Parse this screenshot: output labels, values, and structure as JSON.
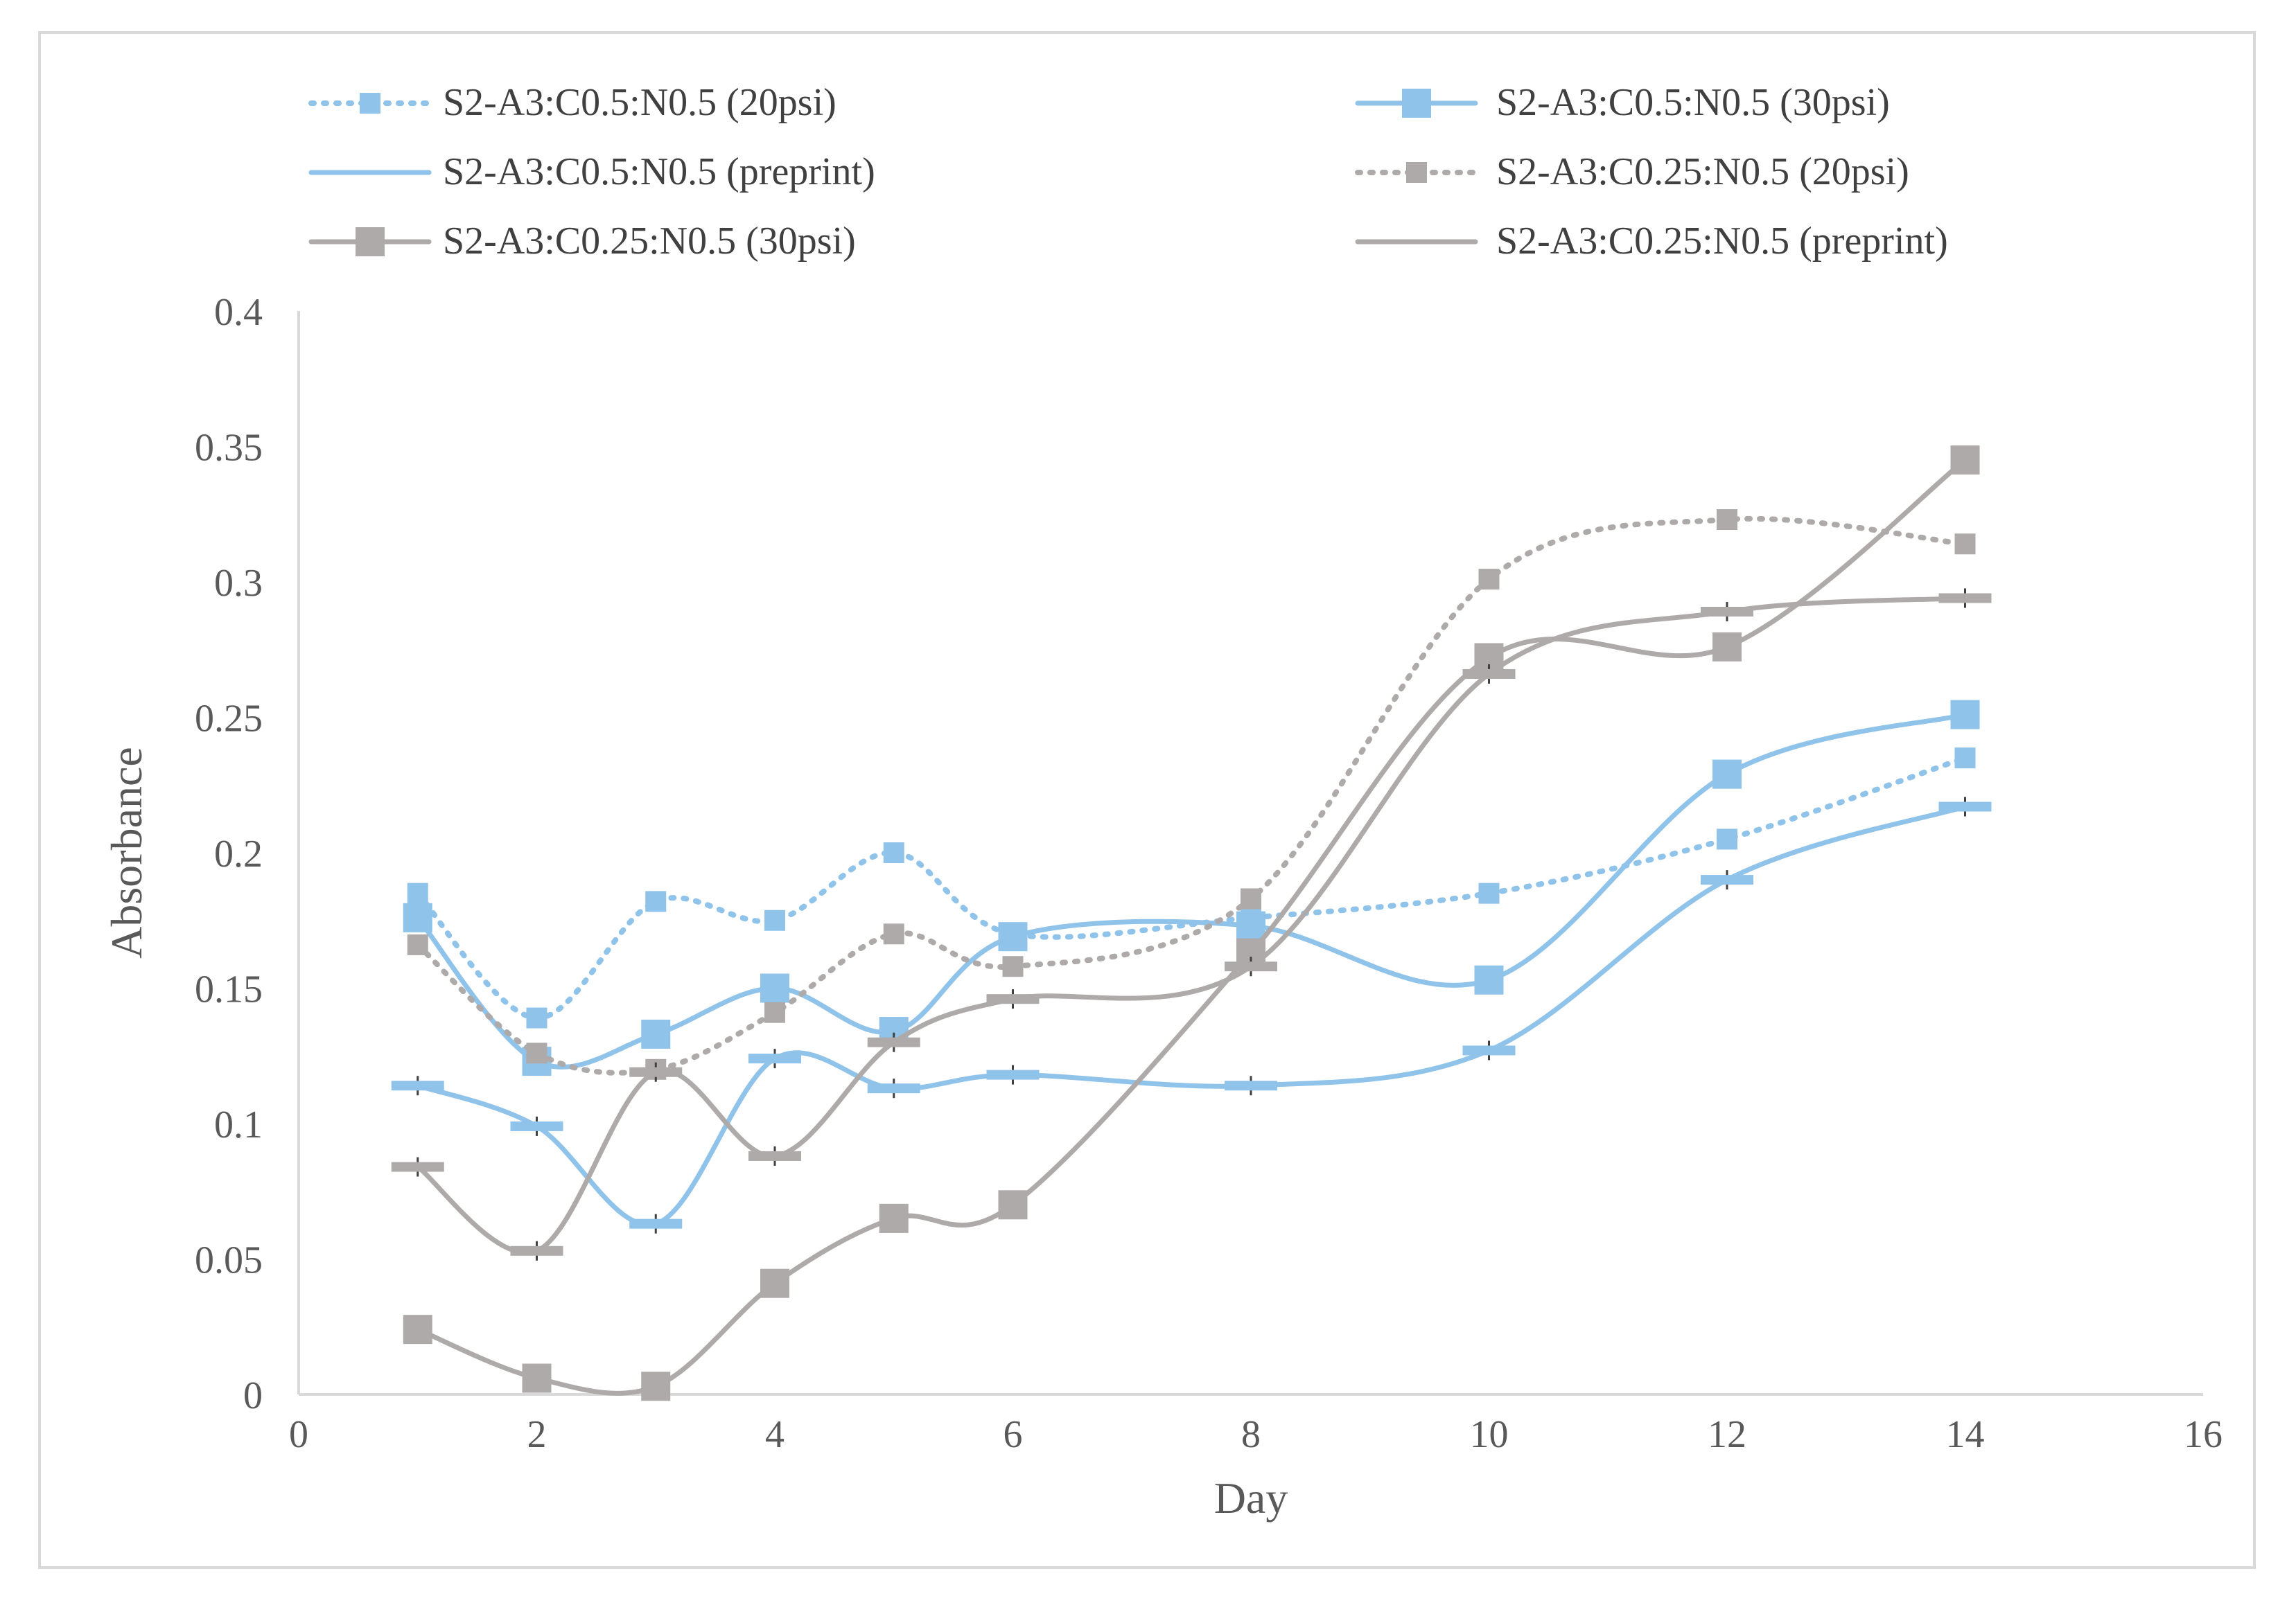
{
  "chart_data": {
    "type": "line",
    "title": "",
    "xlabel": "Day",
    "ylabel": "Absorbance",
    "xlim": [
      0,
      16
    ],
    "ylim": [
      0,
      0.4
    ],
    "xticks": [
      0,
      2,
      4,
      6,
      8,
      10,
      12,
      14,
      16
    ],
    "yticks": [
      0,
      0.05,
      0.1,
      0.15,
      0.2,
      0.25,
      0.3,
      0.35,
      0.4
    ],
    "xtick_labels": [
      "0",
      "2",
      "4",
      "6",
      "8",
      "10",
      "12",
      "14",
      "16"
    ],
    "ytick_labels": [
      "0",
      "0.05",
      "0.1",
      "0.15",
      "0.2",
      "0.25",
      "0.3",
      "0.35",
      "0.4"
    ],
    "grid": false,
    "legend_position": "top",
    "x": [
      1,
      2,
      3,
      4,
      5,
      6,
      8,
      10,
      12,
      14
    ],
    "series": [
      {
        "name": "S2-A3:C0.5:N0.5 (20psi)",
        "color": "#8fc3ea",
        "line_style": "dotted",
        "marker": "square",
        "values": [
          0.185,
          0.139,
          0.182,
          0.175,
          0.2,
          0.17,
          0.176,
          0.185,
          0.205,
          0.235
        ]
      },
      {
        "name": "S2-A3:C0.5:N0.5 (30psi)",
        "color": "#8fc3ea",
        "line_style": "solid",
        "marker": "square",
        "values": [
          0.176,
          0.123,
          0.133,
          0.15,
          0.134,
          0.169,
          0.173,
          0.153,
          0.229,
          0.251
        ]
      },
      {
        "name": "S2-A3:C0.5:N0.5 (preprint)",
        "color": "#8fc3ea",
        "line_style": "solid",
        "marker": "none",
        "values": [
          0.114,
          0.099,
          0.063,
          0.124,
          0.113,
          0.118,
          0.114,
          0.127,
          0.19,
          0.217
        ]
      },
      {
        "name": "S2-A3:C0.25:N0.5 (20psi)",
        "color": "#aeaaaa",
        "line_style": "dotted",
        "marker": "square",
        "values": [
          0.166,
          0.126,
          0.12,
          0.141,
          0.17,
          0.158,
          0.183,
          0.301,
          0.323,
          0.314
        ]
      },
      {
        "name": "S2-A3:C0.25:N0.5 (30psi)",
        "color": "#aeaaaa",
        "line_style": "solid",
        "marker": "square",
        "values": [
          0.024,
          0.006,
          0.003,
          0.041,
          0.065,
          0.07,
          0.163,
          0.272,
          0.276,
          0.345
        ]
      },
      {
        "name": "S2-A3:C0.25:N0.5 (preprint)",
        "color": "#aeaaaa",
        "line_style": "solid",
        "marker": "none",
        "values": [
          0.084,
          0.053,
          0.119,
          0.088,
          0.13,
          0.146,
          0.158,
          0.266,
          0.289,
          0.294
        ]
      }
    ]
  }
}
